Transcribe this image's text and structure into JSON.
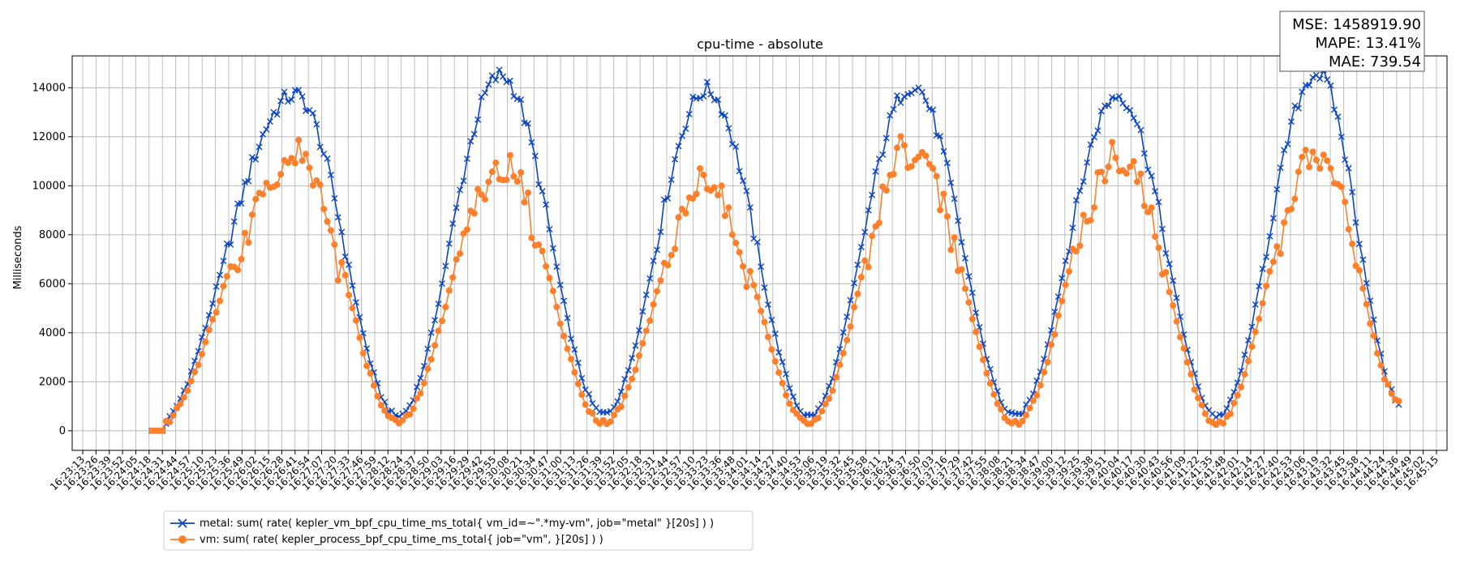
{
  "chart_data": {
    "type": "line",
    "title": "cpu-time - absolute",
    "xlabel": "",
    "ylabel": "Milliseconds",
    "ylim": [
      -800,
      15300
    ],
    "yticks": [
      0,
      2000,
      4000,
      6000,
      8000,
      10000,
      12000,
      14000
    ],
    "grid": true,
    "legend_position": "bottom-left",
    "x_tick_labels": [
      "16:23:13",
      "16:23:26",
      "16:23:39",
      "16:23:52",
      "16:24:05",
      "16:24:18",
      "16:24:31",
      "16:24:44",
      "16:24:57",
      "16:25:10",
      "16:25:23",
      "16:25:36",
      "16:25:49",
      "16:26:02",
      "16:26:15",
      "16:26:28",
      "16:26:41",
      "16:26:54",
      "16:27:07",
      "16:27:20",
      "16:27:33",
      "16:27:46",
      "16:27:59",
      "16:28:12",
      "16:28:24",
      "16:28:37",
      "16:28:50",
      "16:29:03",
      "16:29:16",
      "16:29:29",
      "16:29:42",
      "16:29:55",
      "16:30:08",
      "16:30:21",
      "16:30:34",
      "16:30:47",
      "16:31:00",
      "16:31:13",
      "16:31:26",
      "16:31:39",
      "16:31:52",
      "16:32:05",
      "16:32:18",
      "16:32:31",
      "16:32:44",
      "16:32:57",
      "16:33:10",
      "16:33:23",
      "16:33:36",
      "16:33:48",
      "16:34:01",
      "16:34:14",
      "16:34:27",
      "16:34:40",
      "16:34:53",
      "16:35:06",
      "16:35:19",
      "16:35:32",
      "16:35:45",
      "16:35:58",
      "16:36:11",
      "16:36:24",
      "16:36:37",
      "16:36:50",
      "16:37:03",
      "16:37:16",
      "16:37:29",
      "16:37:42",
      "16:37:55",
      "16:38:08",
      "16:38:21",
      "16:38:34",
      "16:38:47",
      "16:39:00",
      "16:39:12",
      "16:39:25",
      "16:39:38",
      "16:39:51",
      "16:40:04",
      "16:40:17",
      "16:40:30",
      "16:40:43",
      "16:40:56",
      "16:41:09",
      "16:41:22",
      "16:41:35",
      "16:41:48",
      "16:42:01",
      "16:42:14",
      "16:42:27",
      "16:42:40",
      "16:42:53",
      "16:43:06",
      "16:43:19",
      "16:43:32",
      "16:43:45",
      "16:43:58",
      "16:44:11",
      "16:44:24",
      "16:44:36",
      "16:44:49",
      "16:45:02",
      "16:45:15"
    ],
    "series": [
      {
        "name": "metal: sum( rate( kepler_vm_bpf_cpu_time_ms_total{ vm_id=~\".*my-vm\", job=\"metal\" }[20s] ) )",
        "color": "#0b44c4",
        "marker": "x",
        "x_range": [
          5.2,
          99.4
        ],
        "peaks_at_x": [
          16,
          31.5,
          47,
          62.5,
          78,
          93
        ],
        "peak_values": [
          13700,
          14500,
          13900,
          14100,
          13700,
          14600
        ],
        "trough_values": [
          500,
          600,
          700,
          600,
          600,
          600
        ],
        "start_value": 0,
        "end_value": 1100
      },
      {
        "name": "vm: sum( rate( kepler_process_bpf_cpu_time_ms_total{ job=\"vm\", }[20s] ) )",
        "color": "#ff7f2a",
        "marker": "o",
        "x_range": [
          5.2,
          99.4
        ],
        "peaks_at_x": [
          16,
          31.5,
          47,
          62.5,
          78,
          93
        ],
        "peak_values": [
          11700,
          11200,
          10400,
          12000,
          11800,
          11800
        ],
        "trough_values": [
          400,
          350,
          350,
          300,
          300,
          300
        ],
        "start_value": 0,
        "end_value": 1100
      }
    ],
    "stats": {
      "mse": "MSE: 1458919.90",
      "mape": "MAPE: 13.41%",
      "mae": "MAE: 739.54"
    }
  }
}
